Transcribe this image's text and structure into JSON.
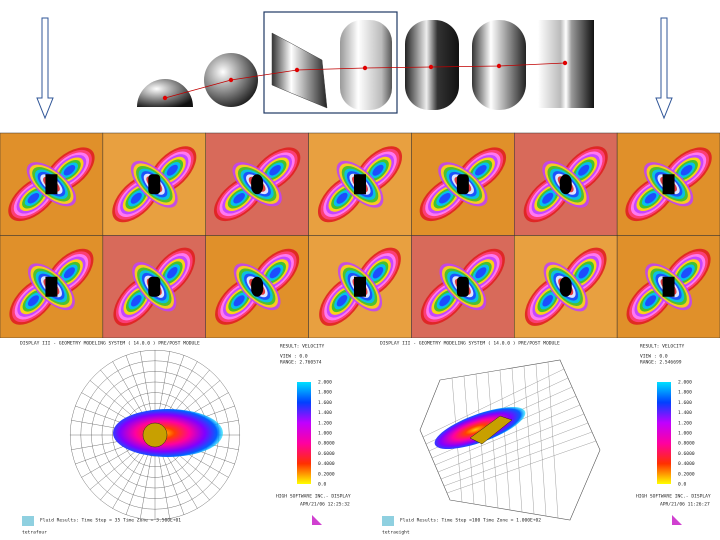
{
  "panels": [
    {
      "header": "DISPLAY III - GEOMETRY MODELING SYSTEM ( 14.0.0 )  PRE/POST MODULE",
      "result": "RESULT: VELOCITY",
      "view": "VIEW : 0.0",
      "range": "RANGE: 2.760574",
      "scale_labels": [
        "2.000",
        "1.800",
        "1.600",
        "1.400",
        "1.200",
        "1.000",
        "0.8000",
        "0.6000",
        "0.4000",
        "0.2000",
        "0.0"
      ],
      "company": "HIGH SOFTWARE INC.- DISPLAY",
      "date": "APR/21/06 12:25:32",
      "caption": "Fluid Results: Time Step = 35  Time Zone = 3.500E+01",
      "model": "tetrafour"
    },
    {
      "header": "DISPLAY III - GEOMETRY MODELING SYSTEM ( 14.0.0 )  PRE/POST MODULE",
      "result": "RESULT: VELOCITY",
      "view": "VIEW : 0.0",
      "range": "RANGE: 2.546699",
      "scale_labels": [
        "2.000",
        "1.800",
        "1.600",
        "1.400",
        "1.200",
        "1.000",
        "0.8000",
        "0.6000",
        "0.4000",
        "0.2000",
        "0.0"
      ],
      "company": "HIGH SOFTWARE INC.- DISPLAY",
      "date": "APR/21/06 11:26:27",
      "caption": "Fluid Results: Time Step =100  Time Zone = 1.000E+02",
      "model": "tetraeight"
    }
  ]
}
